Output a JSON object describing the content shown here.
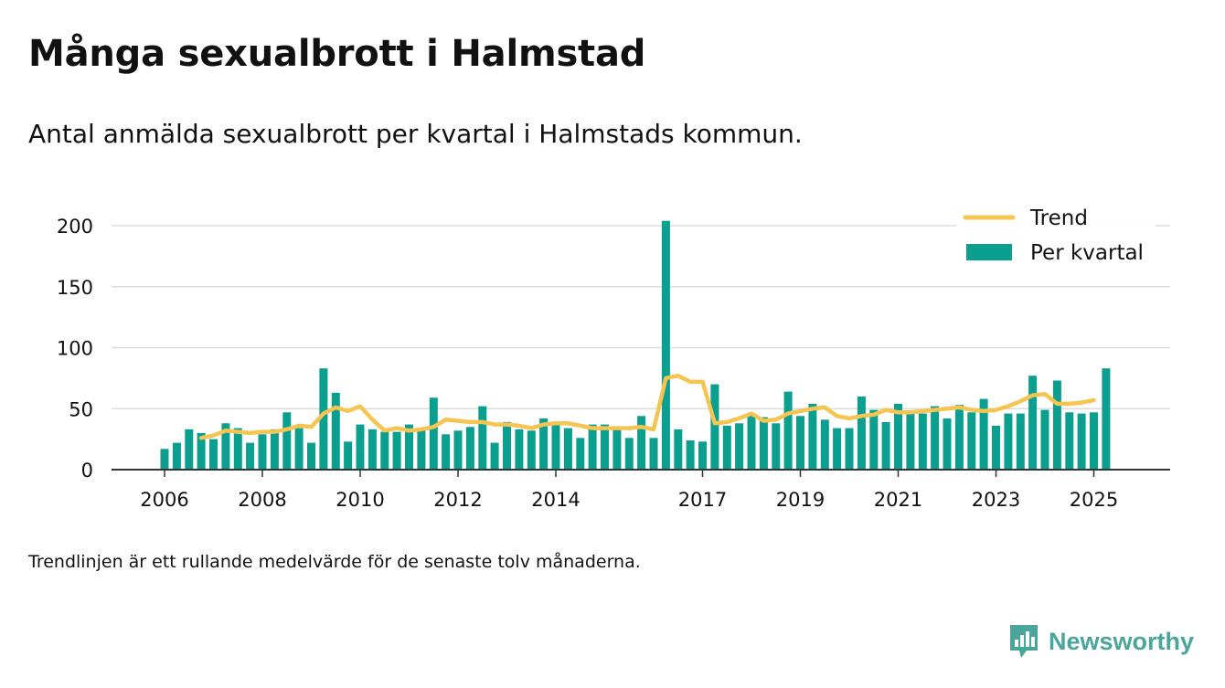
{
  "header": {
    "title": "Många sexualbrott i Halmstad",
    "subtitle": "Antal anmälda sexualbrott per kvartal i Halmstads kommun."
  },
  "footnote": "Trendlinjen är ett rullande medelvärde för de senaste tolv månaderna.",
  "brand": {
    "name": "Newsworthy",
    "icon": "newsworthy-logo-icon"
  },
  "colors": {
    "bars": "#0a9f8f",
    "trend": "#f5c451",
    "grid": "#dddddd",
    "axis": "#333333",
    "text": "#111111"
  },
  "chart_data": {
    "type": "bar",
    "title": "Många sexualbrott i Halmstad",
    "ylabel": "",
    "xlabel": "",
    "ylim": [
      0,
      200
    ],
    "yticks": [
      0,
      50,
      100,
      150,
      200
    ],
    "grid": true,
    "legend_position": "top-right",
    "x_start": 2006.0,
    "x_step": 0.25,
    "xticks": [
      {
        "label": "2006",
        "x": 2006.0
      },
      {
        "label": "2008",
        "x": 2008.0
      },
      {
        "label": "2010",
        "x": 2010.0
      },
      {
        "label": "2012",
        "x": 2012.0
      },
      {
        "label": "2014",
        "x": 2014.0
      },
      {
        "label": "2017",
        "x": 2017.0
      },
      {
        "label": "2019",
        "x": 2019.0
      },
      {
        "label": "2021",
        "x": 2021.0
      },
      {
        "label": "2023",
        "x": 2023.0
      },
      {
        "label": "2025",
        "x": 2025.0
      }
    ],
    "series": [
      {
        "name": "Per kvartal",
        "type": "bar",
        "values": [
          17,
          22,
          33,
          30,
          25,
          38,
          34,
          22,
          29,
          33,
          47,
          34,
          22,
          83,
          63,
          23,
          37,
          33,
          31,
          31,
          37,
          34,
          59,
          29,
          32,
          35,
          52,
          22,
          39,
          33,
          32,
          42,
          37,
          34,
          26,
          37,
          37,
          33,
          26,
          44,
          26,
          204,
          33,
          24,
          23,
          70,
          36,
          38,
          44,
          43,
          38,
          64,
          44,
          54,
          41,
          34,
          34,
          60,
          49,
          39,
          54,
          47,
          46,
          52,
          42,
          53,
          47,
          58,
          36,
          46,
          46,
          77,
          49,
          73,
          47,
          46,
          47,
          83
        ]
      },
      {
        "name": "Trend",
        "type": "line",
        "start_index": 3,
        "values": [
          26,
          28,
          32,
          31,
          30,
          31,
          31,
          33,
          36,
          35,
          46,
          51,
          48,
          52,
          41,
          32,
          34,
          32,
          33,
          35,
          41,
          40,
          39,
          39,
          37,
          37,
          36,
          34,
          37,
          38,
          38,
          36,
          34,
          34,
          34,
          34,
          35,
          33,
          75,
          77,
          72,
          72,
          38,
          39,
          42,
          46,
          40,
          41,
          46,
          48,
          50,
          51,
          44,
          42,
          44,
          45,
          49,
          47,
          47,
          48,
          49,
          50,
          51,
          49,
          48,
          49,
          52,
          56,
          61,
          62,
          54,
          54,
          55,
          57
        ]
      }
    ],
    "legend": [
      {
        "label": "Trend",
        "type": "line"
      },
      {
        "label": "Per kvartal",
        "type": "bar"
      }
    ]
  }
}
